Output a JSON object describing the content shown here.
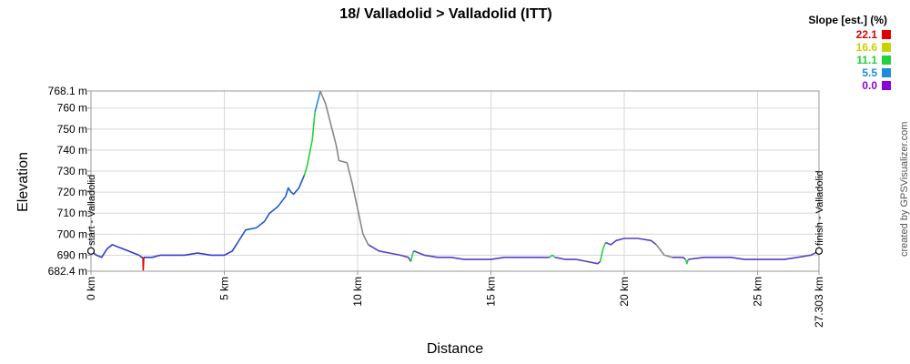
{
  "chart_data": {
    "type": "line",
    "title": "18/ Valladolid > Valladolid (ITT)",
    "xlabel": "Distance",
    "ylabel": "Elevation",
    "xlim": [
      0,
      27.303
    ],
    "ylim": [
      682.4,
      768.1
    ],
    "grid": true,
    "x_ticks": [
      {
        "value": 0,
        "label": "0 km"
      },
      {
        "value": 5,
        "label": "5 km"
      },
      {
        "value": 10,
        "label": "10 km"
      },
      {
        "value": 15,
        "label": "15 km"
      },
      {
        "value": 20,
        "label": "20 km"
      },
      {
        "value": 25,
        "label": "25 km"
      },
      {
        "value": 27.303,
        "label": "27.303 km"
      }
    ],
    "y_ticks": [
      {
        "value": 682.4,
        "label": "682.4 m"
      },
      {
        "value": 690,
        "label": "690 m"
      },
      {
        "value": 700,
        "label": "700 m"
      },
      {
        "value": 710,
        "label": "710 m"
      },
      {
        "value": 720,
        "label": "720 m"
      },
      {
        "value": 730,
        "label": "730 m"
      },
      {
        "value": 740,
        "label": "740 m"
      },
      {
        "value": 750,
        "label": "750 m"
      },
      {
        "value": 760,
        "label": "760 m"
      },
      {
        "value": 768.1,
        "label": "768.1 m"
      }
    ],
    "legend": {
      "title": "Slope [est.] (%)",
      "placement": "top-right",
      "entries": [
        {
          "label": "22.1",
          "color": "#e00000"
        },
        {
          "label": "16.6",
          "color": "#c8d200"
        },
        {
          "label": "11.1",
          "color": "#22d23c"
        },
        {
          "label": "5.5",
          "color": "#1e8cdc"
        },
        {
          "label": "0.0",
          "color": "#8c00dc"
        }
      ]
    },
    "segments": [
      {
        "color": "#2f3cc8",
        "points": [
          [
            0,
            692
          ],
          [
            0.2,
            690
          ],
          [
            0.4,
            689
          ],
          [
            0.6,
            693
          ],
          [
            0.8,
            695
          ],
          [
            1.0,
            694
          ],
          [
            1.2,
            693
          ],
          [
            1.4,
            692
          ],
          [
            1.6,
            691
          ],
          [
            1.8,
            690
          ],
          [
            1.9,
            689
          ],
          [
            1.95,
            689
          ]
        ]
      },
      {
        "color": "#e00000",
        "points": [
          [
            1.95,
            689
          ],
          [
            1.96,
            683
          ],
          [
            1.98,
            689
          ]
        ]
      },
      {
        "color": "#2f3cc8",
        "points": [
          [
            1.98,
            689
          ],
          [
            2.3,
            689
          ],
          [
            2.6,
            690
          ],
          [
            3.0,
            690
          ],
          [
            3.5,
            690
          ],
          [
            4.0,
            691
          ],
          [
            4.5,
            690
          ],
          [
            5.0,
            690
          ],
          [
            5.3,
            692
          ],
          [
            5.5,
            696
          ]
        ]
      },
      {
        "color": "#1e5ac8",
        "points": [
          [
            5.5,
            696
          ],
          [
            5.8,
            702
          ],
          [
            6.2,
            703
          ],
          [
            6.5,
            706
          ],
          [
            6.7,
            710
          ],
          [
            7.0,
            713
          ],
          [
            7.3,
            718
          ],
          [
            7.4,
            722
          ],
          [
            7.5,
            720
          ],
          [
            7.6,
            719
          ],
          [
            7.8,
            722
          ],
          [
            8.0,
            728
          ]
        ]
      },
      {
        "color": "#22d23c",
        "points": [
          [
            8.0,
            728
          ],
          [
            8.1,
            732
          ],
          [
            8.3,
            745
          ],
          [
            8.4,
            758
          ]
        ]
      },
      {
        "color": "#1e8cdc",
        "points": [
          [
            8.4,
            758
          ],
          [
            8.6,
            768
          ]
        ]
      },
      {
        "color": "#888888",
        "points": [
          [
            8.6,
            768
          ],
          [
            8.8,
            762
          ],
          [
            9.0,
            752
          ],
          [
            9.2,
            742
          ],
          [
            9.3,
            735
          ],
          [
            9.6,
            734
          ],
          [
            9.8,
            724
          ],
          [
            10.0,
            712
          ],
          [
            10.2,
            700
          ],
          [
            10.4,
            695
          ]
        ]
      },
      {
        "color": "#5a3cc8",
        "points": [
          [
            10.4,
            695
          ],
          [
            10.8,
            692
          ],
          [
            11.2,
            691
          ],
          [
            11.6,
            690
          ],
          [
            11.9,
            689
          ],
          [
            12.0,
            687
          ]
        ]
      },
      {
        "color": "#22d23c",
        "points": [
          [
            12.0,
            687
          ],
          [
            12.05,
            690
          ],
          [
            12.1,
            692
          ]
        ]
      },
      {
        "color": "#5a3cc8",
        "points": [
          [
            12.1,
            692
          ],
          [
            12.5,
            690
          ],
          [
            13.0,
            689
          ],
          [
            13.5,
            689
          ],
          [
            14.0,
            688
          ],
          [
            14.5,
            688
          ],
          [
            15.0,
            688
          ],
          [
            15.5,
            689
          ],
          [
            16.0,
            689
          ],
          [
            16.5,
            689
          ],
          [
            17.0,
            689
          ],
          [
            17.2,
            689
          ]
        ]
      },
      {
        "color": "#22d23c",
        "points": [
          [
            17.2,
            689
          ],
          [
            17.3,
            690
          ],
          [
            17.4,
            689
          ]
        ]
      },
      {
        "color": "#5a3cc8",
        "points": [
          [
            17.4,
            689
          ],
          [
            17.8,
            688
          ],
          [
            18.2,
            688
          ],
          [
            18.6,
            687
          ],
          [
            19.0,
            686
          ],
          [
            19.1,
            687
          ]
        ]
      },
      {
        "color": "#22d23c",
        "points": [
          [
            19.1,
            687
          ],
          [
            19.2,
            693
          ],
          [
            19.3,
            696
          ]
        ]
      },
      {
        "color": "#5a3cc8",
        "points": [
          [
            19.3,
            696
          ],
          [
            19.5,
            695
          ],
          [
            19.7,
            697
          ],
          [
            20.0,
            698
          ],
          [
            20.5,
            698
          ],
          [
            21.0,
            697
          ],
          [
            21.2,
            695
          ]
        ]
      },
      {
        "color": "#888888",
        "points": [
          [
            21.2,
            695
          ],
          [
            21.5,
            690
          ],
          [
            21.8,
            689
          ]
        ]
      },
      {
        "color": "#5a3cc8",
        "points": [
          [
            21.8,
            689
          ],
          [
            22.2,
            689
          ],
          [
            22.3,
            688
          ]
        ]
      },
      {
        "color": "#22d23c",
        "points": [
          [
            22.3,
            688
          ],
          [
            22.35,
            686
          ],
          [
            22.4,
            688
          ]
        ]
      },
      {
        "color": "#5a3cc8",
        "points": [
          [
            22.4,
            688
          ],
          [
            23.0,
            689
          ],
          [
            23.5,
            689
          ],
          [
            24.0,
            689
          ],
          [
            24.5,
            688
          ],
          [
            25.0,
            688
          ],
          [
            25.5,
            688
          ],
          [
            26.0,
            688
          ],
          [
            26.5,
            689
          ],
          [
            27.0,
            690
          ],
          [
            27.303,
            692
          ]
        ]
      }
    ],
    "markers": [
      {
        "x": 0,
        "label": "start - Valladolid"
      },
      {
        "x": 27.303,
        "label": "finish - Valladolid"
      }
    ],
    "credit": "created by GPSVisualizer.com"
  }
}
